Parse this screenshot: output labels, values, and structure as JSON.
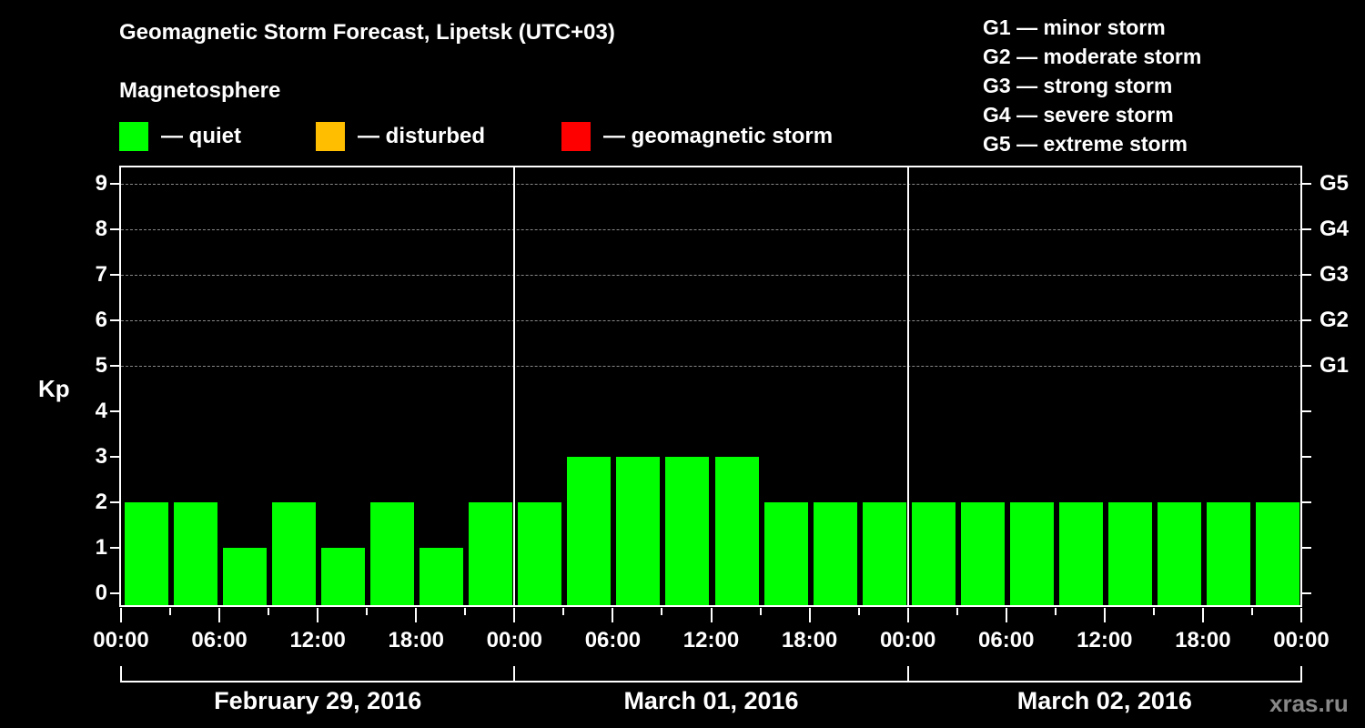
{
  "header": {
    "title": "Geomagnetic Storm Forecast, Lipetsk (UTC+03)",
    "subtitle": "Magnetosphere"
  },
  "legend": [
    {
      "label": "— quiet",
      "color": "#00ff00"
    },
    {
      "label": "— disturbed",
      "color": "#ffbf00"
    },
    {
      "label": "— geomagnetic storm",
      "color": "#ff0000"
    }
  ],
  "g_scale_legend": [
    "G1 — minor storm",
    "G2 — moderate storm",
    "G3 — strong storm",
    "G4 — severe storm",
    "G5 — extreme storm"
  ],
  "watermark": "xras.ru",
  "chart_data": {
    "type": "bar",
    "title": "Geomagnetic Storm Forecast, Lipetsk (UTC+03)",
    "subtitle": "Magnetosphere",
    "ylabel": "Kp",
    "ylim": [
      0,
      9
    ],
    "yticks": [
      0,
      1,
      2,
      3,
      4,
      5,
      6,
      7,
      8,
      9
    ],
    "y2ticks": [
      {
        "kp": 5,
        "label": "G1"
      },
      {
        "kp": 6,
        "label": "G2"
      },
      {
        "kp": 7,
        "label": "G3"
      },
      {
        "kp": 8,
        "label": "G4"
      },
      {
        "kp": 9,
        "label": "G5"
      }
    ],
    "grid": "dashed horizontal at Kp 5-9",
    "xtick_labels": [
      "00:00",
      "06:00",
      "12:00",
      "18:00",
      "00:00",
      "06:00",
      "12:00",
      "18:00",
      "00:00",
      "06:00",
      "12:00",
      "18:00",
      "00:00"
    ],
    "days": [
      "February 29, 2016",
      "March 01, 2016",
      "March 02, 2016"
    ],
    "interval_hours": 3,
    "categories": [
      "Feb29 00-03",
      "Feb29 03-06",
      "Feb29 06-09",
      "Feb29 09-12",
      "Feb29 12-15",
      "Feb29 15-18",
      "Feb29 18-21",
      "Feb29 21-24",
      "Mar01 00-03",
      "Mar01 03-06",
      "Mar01 06-09",
      "Mar01 09-12",
      "Mar01 12-15",
      "Mar01 15-18",
      "Mar01 18-21",
      "Mar01 21-24",
      "Mar02 00-03",
      "Mar02 03-06",
      "Mar02 06-09",
      "Mar02 09-12",
      "Mar02 12-15",
      "Mar02 15-18",
      "Mar02 18-21",
      "Mar02 21-24"
    ],
    "values": [
      2,
      2,
      1,
      2,
      1,
      2,
      1,
      2,
      2,
      3,
      3,
      3,
      3,
      2,
      2,
      2,
      2,
      2,
      2,
      2,
      2,
      2,
      2,
      2
    ],
    "status": [
      "quiet",
      "quiet",
      "quiet",
      "quiet",
      "quiet",
      "quiet",
      "quiet",
      "quiet",
      "quiet",
      "quiet",
      "quiet",
      "quiet",
      "quiet",
      "quiet",
      "quiet",
      "quiet",
      "quiet",
      "quiet",
      "quiet",
      "quiet",
      "quiet",
      "quiet",
      "quiet",
      "quiet"
    ],
    "colors": {
      "quiet": "#00ff00",
      "disturbed": "#ffbf00",
      "storm": "#ff0000"
    },
    "legend": [
      "quiet",
      "disturbed",
      "geomagnetic storm"
    ]
  }
}
